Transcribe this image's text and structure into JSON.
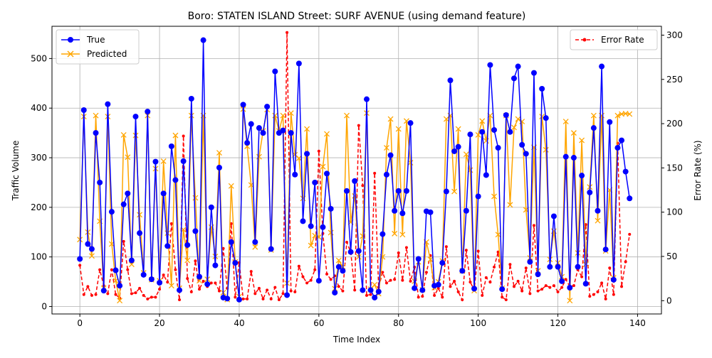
{
  "chart_data": {
    "type": "line",
    "title": "Boro: STATEN ISLAND Street: SURF AVENUE (using demand feature)",
    "xlabel": "Time Index",
    "ylabel": "Traffic Volume",
    "ylabel_right": "Error Rate (%)",
    "xlim": [
      -7,
      146
    ],
    "ylim": [
      -15,
      565
    ],
    "ylim_right": [
      -15,
      310
    ],
    "x_ticks": [
      0,
      20,
      40,
      60,
      80,
      100,
      120,
      140
    ],
    "y_ticks": [
      0,
      100,
      200,
      300,
      400,
      500
    ],
    "y_ticks_right": [
      0,
      50,
      100,
      150,
      200,
      250,
      300
    ],
    "grid": true,
    "legend_left": {
      "placement": "upper-left"
    },
    "legend_right": {
      "placement": "upper-right"
    },
    "colors": {
      "true": "#0000ff",
      "predicted": "#ffa500",
      "error": "#ff0000"
    },
    "series": [
      {
        "name": "True",
        "axis": "left",
        "marker": "circle",
        "values": [
          96,
          396,
          126,
          116,
          350,
          250,
          32,
          408,
          191,
          73,
          42,
          206,
          228,
          93,
          383,
          148,
          64,
          393,
          55,
          292,
          48,
          228,
          122,
          323,
          255,
          33,
          293,
          124,
          419,
          152,
          60,
          537,
          45,
          200,
          83,
          280,
          18,
          16,
          130,
          88,
          14,
          407,
          330,
          368,
          130,
          360,
          350,
          403,
          116,
          474,
          350,
          355,
          23,
          350,
          266,
          490,
          172,
          308,
          162,
          250,
          52,
          160,
          268,
          197,
          28,
          80,
          72,
          233,
          110,
          253,
          112,
          33,
          418,
          33,
          18,
          30,
          146,
          266,
          305,
          193,
          233,
          188,
          233,
          370,
          37,
          96,
          33,
          192,
          190,
          42,
          44,
          88,
          232,
          456,
          313,
          322,
          72,
          193,
          347,
          36,
          222,
          352,
          265,
          487,
          356,
          320,
          35,
          386,
          352,
          460,
          484,
          326,
          308,
          90,
          471,
          65,
          439,
          380,
          80,
          182,
          80,
          51,
          302,
          38,
          300,
          80,
          264,
          46,
          230,
          360,
          193,
          484,
          115,
          372,
          54,
          320,
          335,
          272,
          218
        ]
      },
      {
        "name": "Predicted",
        "axis": "left",
        "marker": "x",
        "values": [
          135,
          383,
          150,
          102,
          385,
          172,
          37,
          383,
          126,
          52,
          12,
          346,
          301,
          85,
          345,
          185,
          68,
          385,
          54,
          278,
          52,
          293,
          148,
          42,
          345,
          37,
          155,
          93,
          385,
          219,
          52,
          385,
          55,
          160,
          101,
          310,
          28,
          14,
          243,
          90,
          20,
          398,
          323,
          245,
          120,
          302,
          354,
          397,
          114,
          385,
          354,
          385,
          47,
          390,
          306,
          299,
          218,
          358,
          123,
          143,
          140,
          282,
          348,
          149,
          36,
          93,
          80,
          385,
          170,
          223,
          100,
          142,
          390,
          35,
          44,
          26,
          100,
          320,
          378,
          147,
          358,
          145,
          374,
          290,
          51,
          90,
          34,
          130,
          95,
          38,
          50,
          92,
          378,
          385,
          232,
          358,
          72,
          307,
          275,
          32,
          346,
          374,
          334,
          385,
          222,
          145,
          37,
          385,
          205,
          361,
          378,
          373,
          195,
          98,
          321,
          72,
          383,
          316,
          95,
          152,
          88,
          60,
          373,
          12,
          350,
          108,
          335,
          85,
          241,
          385,
          173,
          385,
          112,
          235,
          58,
          385,
          388,
          389,
          388
        ]
      },
      {
        "name": "Error Rate",
        "axis": "right",
        "marker": "dot",
        "dashed": true,
        "values": [
          40,
          7,
          16,
          6,
          7,
          35,
          17,
          8,
          35,
          7,
          3,
          67,
          35,
          8,
          9,
          14,
          6,
          2,
          4,
          4,
          13,
          29,
          21,
          87,
          35,
          1,
          186,
          25,
          10,
          45,
          13,
          22,
          16,
          20,
          20,
          11,
          59,
          14,
          87,
          4,
          43,
          2,
          2,
          33,
          8,
          14,
          2,
          12,
          2,
          15,
          1,
          8,
          303,
          11,
          10,
          39,
          27,
          20,
          23,
          35,
          169,
          76,
          30,
          24,
          28,
          16,
          11,
          66,
          55,
          12,
          198,
          130,
          6,
          7,
          144,
          15,
          32,
          20,
          23,
          24,
          54,
          23,
          60,
          22,
          38,
          4,
          5,
          32,
          51,
          6,
          14,
          4,
          61,
          16,
          22,
          10,
          1,
          57,
          21,
          12,
          56,
          6,
          26,
          21,
          38,
          55,
          4,
          1,
          41,
          16,
          22,
          11,
          37,
          8,
          85,
          11,
          13,
          17,
          15,
          17,
          10,
          15,
          24,
          16,
          17,
          35,
          27,
          86,
          5,
          7,
          10,
          20,
          2,
          37,
          7,
          178,
          16,
          44,
          75
        ]
      }
    ]
  }
}
